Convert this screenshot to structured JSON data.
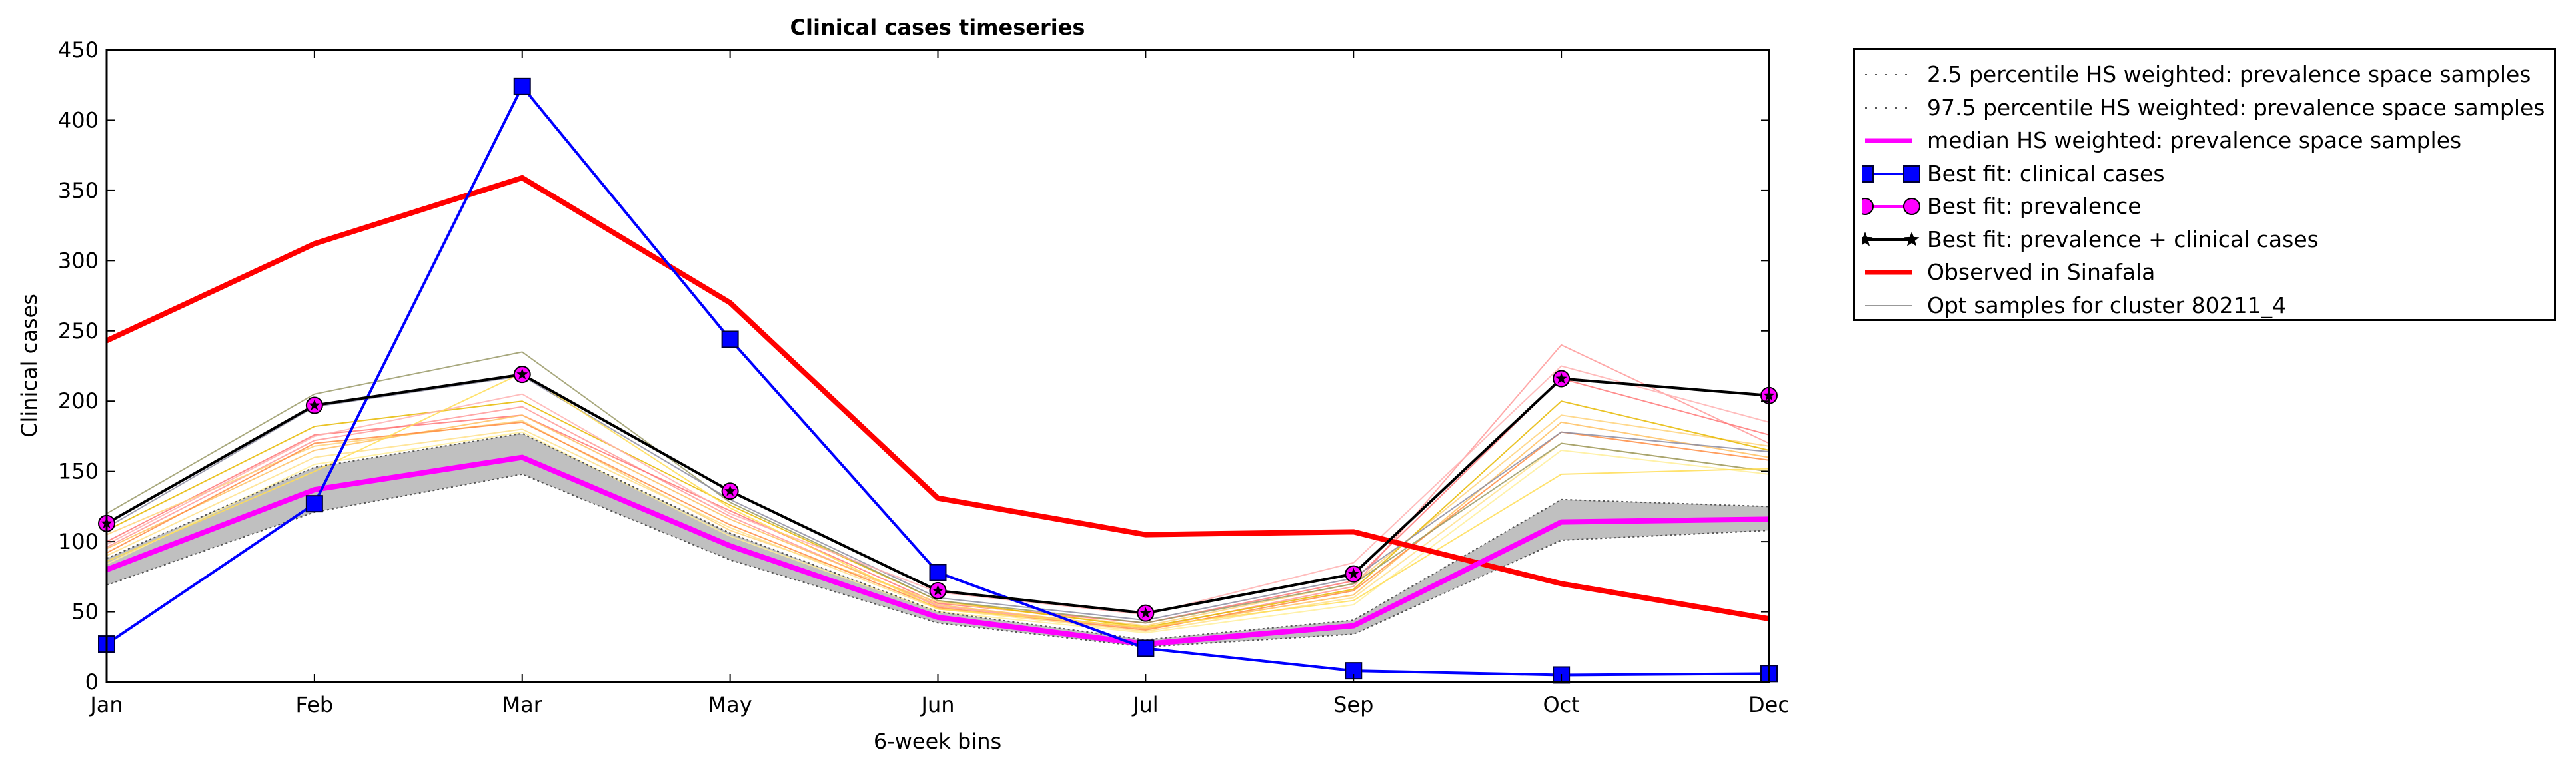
{
  "chart_data": {
    "type": "line",
    "title": "Clinical cases timeseries",
    "xlabel": "6-week bins",
    "ylabel": "Clinical cases",
    "categories": [
      "Jan",
      "Feb",
      "Mar",
      "May",
      "Jun",
      "Jul",
      "Sep",
      "Oct",
      "Dec"
    ],
    "ylim": [
      0,
      450
    ],
    "yticks": [
      0,
      50,
      100,
      150,
      200,
      250,
      300,
      350,
      400,
      450
    ],
    "grid": false,
    "legend_position": "outside-top-right",
    "band": {
      "color": "#c0c0c0",
      "lower": [
        69,
        121,
        148,
        87,
        42,
        25,
        34,
        101,
        108
      ],
      "upper": [
        88,
        153,
        177,
        106,
        50,
        30,
        44,
        130,
        125
      ]
    },
    "sample_colors": [
      "#ff9999",
      "#ff7777",
      "#ffd27a",
      "#ffe08a",
      "#ffee99",
      "#ffc060",
      "#ff8c42",
      "#e6b800",
      "#999966",
      "#8c8ca0",
      "#ffb0b0",
      "#ffdd55"
    ],
    "samples": [
      [
        96,
        172,
        196,
        118,
        54,
        38,
        68,
        240,
        170
      ],
      [
        100,
        176,
        190,
        122,
        56,
        42,
        72,
        216,
        176
      ],
      [
        105,
        168,
        186,
        108,
        57,
        40,
        70,
        190,
        168
      ],
      [
        90,
        160,
        180,
        110,
        52,
        36,
        60,
        170,
        150
      ],
      [
        84,
        155,
        178,
        104,
        50,
        35,
        55,
        165,
        148
      ],
      [
        95,
        165,
        190,
        116,
        55,
        38,
        62,
        185,
        160
      ],
      [
        92,
        170,
        185,
        112,
        53,
        37,
        65,
        178,
        158
      ],
      [
        108,
        182,
        200,
        126,
        58,
        39,
        66,
        200,
        165
      ],
      [
        120,
        205,
        235,
        128,
        58,
        42,
        70,
        170,
        150
      ],
      [
        110,
        196,
        218,
        130,
        60,
        44,
        74,
        178,
        164
      ],
      [
        98,
        175,
        205,
        120,
        64,
        48,
        85,
        225,
        185
      ],
      [
        86,
        150,
        220,
        124,
        52,
        39,
        58,
        148,
        152
      ]
    ],
    "series": [
      {
        "name": "2.5 percentile HS weighted: prevalence space samples",
        "style": "dotted",
        "color": "#555555",
        "values": [
          69,
          121,
          148,
          87,
          42,
          25,
          34,
          101,
          108
        ]
      },
      {
        "name": "97.5 percentile HS weighted: prevalence space samples",
        "style": "dotted",
        "color": "#555555",
        "values": [
          88,
          153,
          177,
          106,
          50,
          30,
          44,
          130,
          125
        ]
      },
      {
        "name": "median HS weighted: prevalence space samples",
        "style": "solid",
        "color": "#ff00ff",
        "values": [
          80,
          137,
          160,
          97,
          46,
          27,
          40,
          114,
          116
        ]
      },
      {
        "name": "Best fit: clinical cases",
        "style": "solid",
        "color": "#0000ff",
        "marker": "square",
        "values": [
          27,
          127,
          424,
          244,
          78,
          24,
          8,
          5,
          6
        ]
      },
      {
        "name": "Best fit: prevalence",
        "style": "solid",
        "color": "#ff00ff",
        "marker": "circle",
        "values": [
          113,
          197,
          219,
          136,
          65,
          49,
          77,
          216,
          204
        ]
      },
      {
        "name": "Best fit: prevalence + clinical cases",
        "style": "solid",
        "color": "#000000",
        "marker": "star",
        "values": [
          113,
          197,
          219,
          136,
          65,
          49,
          77,
          216,
          204
        ]
      },
      {
        "name": "Observed in Sinafala",
        "style": "solid",
        "color": "#ff0000",
        "values": [
          243,
          312,
          359,
          270,
          131,
          105,
          107,
          70,
          45
        ]
      },
      {
        "name": "Opt samples for cluster 80211_4",
        "style": "thin",
        "color": "#999999"
      }
    ]
  }
}
